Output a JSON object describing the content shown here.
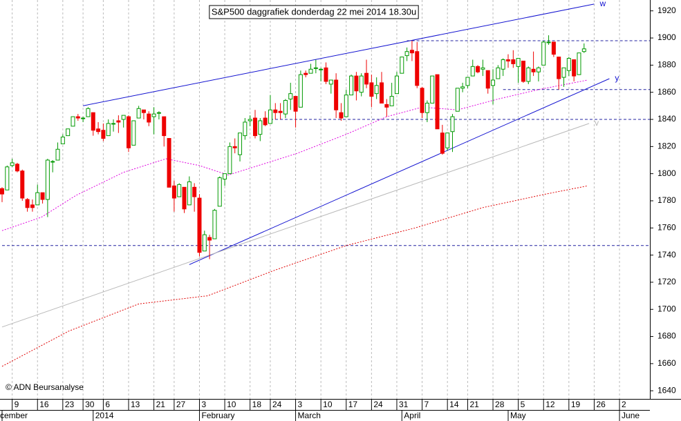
{
  "chart_data": {
    "type": "candlestick",
    "title": "S&P500 daggrafiek donderdag 22 mei 2014 18.30u",
    "copyright": "© ADN Beursanalyse",
    "up_color": "#009900",
    "down_color": "#ee0000",
    "ylim": [
      1634,
      1928
    ],
    "yticks": [
      1640,
      1660,
      1680,
      1700,
      1720,
      1740,
      1760,
      1780,
      1800,
      1820,
      1840,
      1860,
      1880,
      1900,
      1920
    ],
    "categories": [
      null,
      null,
      "9",
      null,
      null,
      null,
      null,
      "16",
      null,
      null,
      null,
      null,
      "23",
      null,
      null,
      null,
      "30",
      null,
      null,
      null,
      "6",
      null,
      null,
      null,
      null,
      "13",
      null,
      null,
      null,
      null,
      "21",
      null,
      null,
      null,
      "27",
      null,
      null,
      null,
      null,
      "3",
      null,
      null,
      null,
      null,
      "10",
      null,
      null,
      null,
      null,
      "18",
      null,
      null,
      null,
      "24",
      null,
      null,
      null,
      null,
      "3",
      null,
      null,
      null,
      null,
      "10",
      null,
      null,
      null,
      null,
      "17",
      null,
      null,
      null,
      null,
      "24",
      null,
      null,
      null,
      null,
      "31",
      null,
      null,
      null,
      null,
      "7",
      null,
      null,
      null,
      null,
      "14",
      null,
      null,
      null,
      "21",
      null,
      null,
      null,
      null,
      "28",
      null,
      null,
      null,
      null,
      "5",
      null,
      null,
      null,
      null,
      "12",
      null,
      null,
      null,
      null,
      "19",
      null,
      null,
      null,
      null,
      "26",
      null,
      null,
      null,
      null,
      "2",
      null,
      null,
      null,
      null,
      null
    ],
    "month_labels": [
      "cember",
      null,
      null,
      null,
      null,
      null,
      null,
      null,
      null,
      null,
      null,
      null,
      null,
      null,
      null,
      null,
      null,
      null,
      "2014",
      null,
      null,
      null,
      null,
      null,
      null,
      null,
      null,
      null,
      null,
      null,
      null,
      null,
      null,
      null,
      null,
      null,
      null,
      null,
      null,
      "February",
      null,
      null,
      null,
      null,
      null,
      null,
      null,
      null,
      null,
      null,
      null,
      null,
      null,
      null,
      null,
      null,
      null,
      null,
      "March",
      null,
      null,
      null,
      null,
      null,
      null,
      null,
      null,
      null,
      null,
      null,
      null,
      null,
      null,
      null,
      null,
      null,
      null,
      null,
      null,
      "April",
      null,
      null,
      null,
      null,
      null,
      null,
      null,
      null,
      null,
      null,
      null,
      null,
      null,
      null,
      null,
      null,
      null,
      null,
      null,
      null,
      "May",
      null,
      null,
      null,
      null,
      null,
      null,
      null,
      null,
      null,
      null,
      null,
      null,
      null,
      null,
      null,
      null,
      null,
      null,
      null,
      null,
      null,
      "June",
      null,
      null,
      null,
      null,
      null
    ],
    "open": [
      1789,
      1788,
      1806,
      1807,
      1802,
      1781,
      1777,
      1777,
      1786,
      1781,
      1809,
      1810,
      1822,
      1828,
      1835,
      1842,
      1841,
      1842,
      1845,
      1833,
      1832,
      1828,
      1837,
      1839,
      1840,
      1842,
      1821,
      1841,
      1847,
      1844,
      1842,
      1845,
      1842,
      1826,
      1791,
      1783,
      1790,
      1777,
      1790,
      1782,
      1743,
      1753,
      1752,
      1776,
      1796,
      1800,
      1820,
      1814,
      1828,
      1839,
      1841,
      1829,
      1841,
      1837,
      1847,
      1846,
      1844,
      1855,
      1857,
      1849,
      1874,
      1874,
      1878,
      1877,
      1878,
      1866,
      1869,
      1845,
      1842,
      1858,
      1872,
      1860,
      1874,
      1867,
      1859,
      1867,
      1851,
      1850,
      1859,
      1874,
      1887,
      1891,
      1890,
      1863,
      1845,
      1852,
      1873,
      1830,
      1819,
      1831,
      1846,
      1863,
      1865,
      1872,
      1879,
      1877,
      1876,
      1865,
      1870,
      1877,
      1884,
      1884,
      1879,
      1883,
      1868,
      1877,
      1875,
      1880,
      1897,
      1897,
      1886,
      1871,
      1876,
      1884,
      1873,
      1890,
      null,
      null,
      null,
      null,
      null,
      null,
      null,
      null,
      null,
      null,
      null,
      null
    ],
    "high": [
      1790,
      1806,
      1811,
      1808,
      1803,
      1782,
      1781,
      1792,
      1786,
      1811,
      1810,
      1823,
      1829,
      1833,
      1842,
      1844,
      1842,
      1849,
      1845,
      1838,
      1837,
      1840,
      1840,
      1843,
      1843,
      1843,
      1839,
      1850,
      1847,
      1846,
      1849,
      1846,
      1842,
      1826,
      1795,
      1793,
      1790,
      1798,
      1793,
      1785,
      1758,
      1755,
      1774,
      1798,
      1800,
      1823,
      1826,
      1830,
      1841,
      1843,
      1847,
      1841,
      1846,
      1858,
      1852,
      1852,
      1855,
      1867,
      1857,
      1876,
      1876,
      1881,
      1884,
      1878,
      1882,
      1869,
      1874,
      1852,
      1862,
      1873,
      1875,
      1874,
      1884,
      1873,
      1871,
      1875,
      1855,
      1867,
      1875,
      1886,
      1893,
      1898,
      1897,
      1864,
      1854,
      1872,
      1873,
      1836,
      1830,
      1844,
      1863,
      1867,
      1871,
      1884,
      1880,
      1884,
      1876,
      1877,
      1880,
      1885,
      1888,
      1891,
      1885,
      1883,
      1879,
      1890,
      1879,
      1898,
      1902,
      1897,
      1886,
      1878,
      1886,
      1884,
      1889,
      1896,
      null,
      null,
      null,
      null,
      null,
      null,
      null,
      null,
      null,
      null,
      null,
      null
    ],
    "low": [
      1779,
      1788,
      1805,
      1801,
      1780,
      1772,
      1772,
      1777,
      1778,
      1768,
      1801,
      1810,
      1822,
      1828,
      1835,
      1839,
      1838,
      1842,
      1828,
      1829,
      1824,
      1828,
      1831,
      1830,
      1834,
      1816,
      1821,
      1841,
      1840,
      1835,
      1829,
      1840,
      1820,
      1790,
      1772,
      1783,
      1771,
      1777,
      1772,
      1739,
      1743,
      1737,
      1752,
      1776,
      1791,
      1800,
      1815,
      1809,
      1825,
      1835,
      1826,
      1824,
      1835,
      1837,
      1840,
      1840,
      1841,
      1847,
      1834,
      1849,
      1871,
      1874,
      1874,
      1868,
      1866,
      1859,
      1841,
      1839,
      1842,
      1858,
      1854,
      1857,
      1863,
      1849,
      1855,
      1852,
      1842,
      1850,
      1859,
      1874,
      1883,
      1883,
      1863,
      1841,
      1838,
      1852,
      1833,
      1814,
      1817,
      1816,
      1846,
      1860,
      1863,
      1872,
      1874,
      1872,
      1859,
      1851,
      1870,
      1872,
      1878,
      1878,
      1867,
      1867,
      1866,
      1872,
      1868,
      1880,
      1895,
      1886,
      1862,
      1864,
      1872,
      1868,
      1873,
      1889,
      null,
      null,
      null,
      null,
      null,
      null,
      null,
      null,
      null,
      null,
      null,
      null
    ],
    "close": [
      1785,
      1805,
      1808,
      1802,
      1782,
      1775,
      1775,
      1786,
      1781,
      1810,
      1809,
      1818,
      1827,
      1833,
      1842,
      1841,
      1841,
      1848,
      1832,
      1831,
      1826,
      1837,
      1837,
      1838,
      1843,
      1819,
      1839,
      1848,
      1845,
      1838,
      1844,
      1845,
      1828,
      1790,
      1782,
      1792,
      1774,
      1794,
      1783,
      1742,
      1755,
      1751,
      1773,
      1797,
      1800,
      1820,
      1819,
      1830,
      1838,
      1840,
      1828,
      1839,
      1836,
      1847,
      1845,
      1845,
      1854,
      1859,
      1846,
      1873,
      1873,
      1877,
      1878,
      1877,
      1868,
      1869,
      1847,
      1841,
      1858,
      1872,
      1861,
      1872,
      1866,
      1857,
      1865,
      1852,
      1849,
      1857,
      1872,
      1886,
      1890,
      1889,
      1865,
      1845,
      1852,
      1872,
      1833,
      1815,
      1830,
      1842,
      1863,
      1864,
      1871,
      1879,
      1875,
      1878,
      1863,
      1869,
      1878,
      1884,
      1883,
      1881,
      1885,
      1868,
      1878,
      1875,
      1878,
      1897,
      1897,
      1888,
      1870,
      1878,
      1885,
      1872,
      1889,
      1892,
      null,
      null,
      null,
      null,
      null,
      null,
      null,
      null,
      null,
      null,
      null,
      null
    ],
    "lines": [
      {
        "label": "w",
        "color": "#1010d0",
        "style": "solid",
        "points": [
          [
            16,
            1850
          ],
          [
            117,
            1925
          ]
        ]
      },
      {
        "label": "y",
        "color": "#1010d0",
        "style": "solid",
        "points": [
          [
            37,
            1733
          ],
          [
            120,
            1870
          ]
        ]
      },
      {
        "label": "v",
        "color": "#b8b8b8",
        "style": "solid",
        "points": [
          [
            0,
            1687
          ],
          [
            116,
            1837
          ]
        ]
      },
      {
        "color": "#2020a0",
        "style": "dashed",
        "points": [
          [
            0,
            1747
          ],
          [
            128,
            1747
          ]
        ]
      },
      {
        "color": "#2020a0",
        "style": "dashed",
        "points": [
          [
            53,
            1840
          ],
          [
            128,
            1840
          ]
        ]
      },
      {
        "color": "#2020a0",
        "style": "dashed",
        "points": [
          [
            99,
            1862
          ],
          [
            128,
            1862
          ]
        ]
      },
      {
        "color": "#2020a0",
        "style": "dashed",
        "points": [
          [
            80,
            1898
          ],
          [
            128,
            1898
          ]
        ]
      },
      {
        "color": "#e000e0",
        "style": "dotted",
        "points": [
          [
            0,
            1758
          ],
          [
            7.8,
            1768
          ],
          [
            14.6,
            1784
          ],
          [
            24,
            1801
          ],
          [
            32.4,
            1811
          ],
          [
            39,
            1806
          ],
          [
            44.7,
            1799
          ],
          [
            51.5,
            1807
          ],
          [
            58.3,
            1815
          ],
          [
            68,
            1829
          ],
          [
            76,
            1842
          ],
          [
            83,
            1849
          ],
          [
            90,
            1847
          ],
          [
            98,
            1855
          ],
          [
            106,
            1862
          ],
          [
            115.7,
            1869
          ]
        ]
      },
      {
        "color": "#e00000",
        "style": "dotted",
        "points": [
          [
            0,
            1658
          ],
          [
            13.2,
            1684
          ],
          [
            27,
            1704
          ],
          [
            40.6,
            1710
          ],
          [
            54,
            1729
          ],
          [
            68,
            1747
          ],
          [
            81.6,
            1760
          ],
          [
            95,
            1775
          ],
          [
            107.5,
            1785
          ],
          [
            115.7,
            1791
          ]
        ]
      }
    ]
  }
}
